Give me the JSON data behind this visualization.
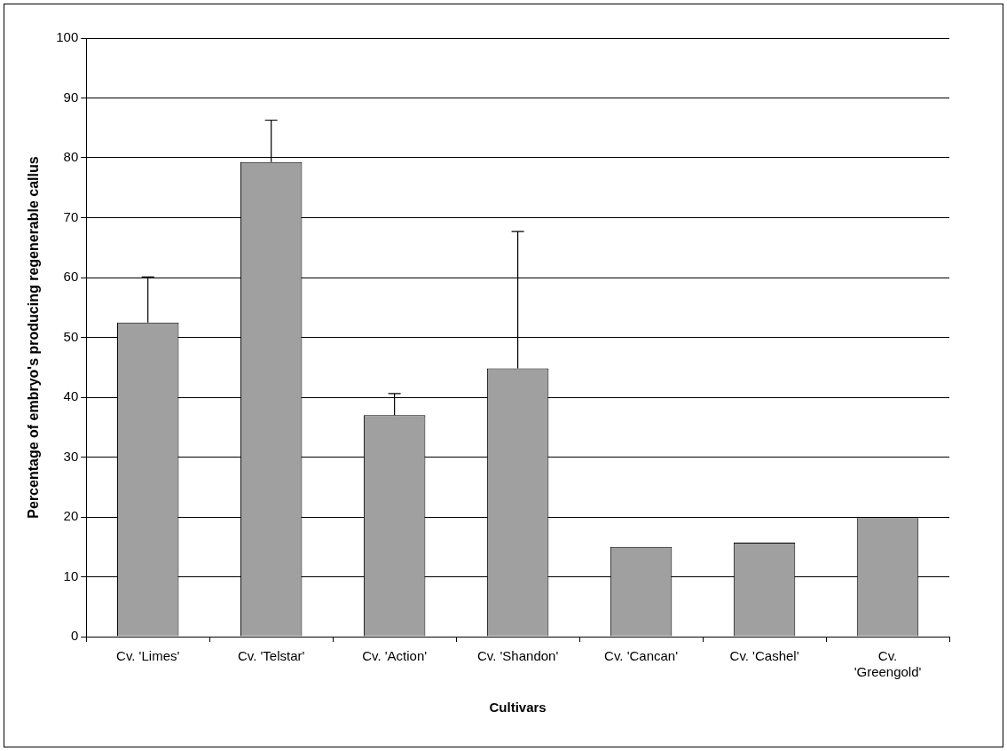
{
  "chart_data": {
    "type": "bar",
    "xlabel": "Cultivars",
    "ylabel": "Percentage of embryo's producing regenerable callus",
    "categories": [
      "Cv. 'Limes'",
      "Cv. 'Telstar'",
      "Cv. 'Action'",
      "Cv. 'Shandon'",
      "Cv. 'Cancan'",
      "Cv. 'Cashel'",
      "Cv. 'Greengold'"
    ],
    "values": [
      52.5,
      79.3,
      37,
      44.8,
      15,
      15.7,
      20
    ],
    "errors": [
      [
        52.5,
        60.1
      ],
      [
        79.3,
        86.3
      ],
      [
        37,
        40.6
      ],
      [
        44.8,
        67.7
      ],
      null,
      null,
      null
    ],
    "color": "#a0a0a0",
    "ylim": [
      0,
      100
    ],
    "yticks": [
      0,
      10,
      20,
      30,
      40,
      50,
      60,
      70,
      80,
      90,
      100
    ],
    "grid": "y",
    "legend": false
  }
}
